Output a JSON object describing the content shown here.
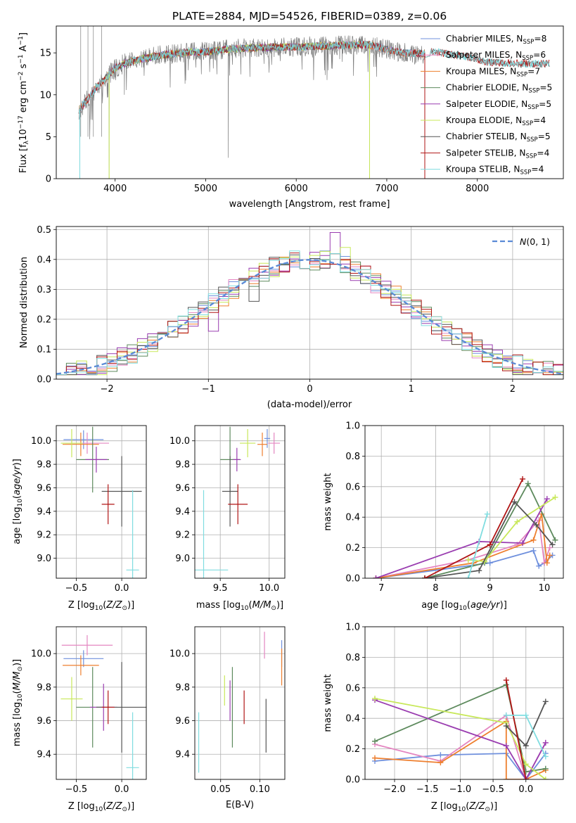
{
  "figure_title": "PLATE=2884, MJD=54526, FIBERID=0389, z=0.06",
  "colors": {
    "Chabrier MILES": "#6f90dd",
    "Salpeter MILES": "#e486c1",
    "Kroupa MILES": "#ee7f2e",
    "Chabrier ELODIE": "#5d8a5d",
    "Salpeter ELODIE": "#9a3db0",
    "Kroupa ELODIE": "#c8e85a",
    "Chabrier STELIB": "#555555",
    "Salpeter STELIB": "#b01515",
    "Kroupa STELIB": "#80dde0",
    "data": "#7f7f7f",
    "normal": "#5a8ad6"
  },
  "chart_data": [
    {
      "id": "spectrum",
      "type": "line",
      "title": "PLATE=2884, MJD=54526, FIBERID=0389, z=0.06",
      "xlabel": "wavelength [Angstrom, rest frame]",
      "ylabel": "Flux [f_λ10^-17 erg cm^-2 s^-1 A^-1]",
      "xlim": [
        3350,
        8950
      ],
      "ylim": [
        0,
        18.2
      ],
      "xticks": [
        "4000",
        "5000",
        "6000",
        "7000",
        "8000"
      ],
      "yticks": [
        "0",
        "5",
        "10",
        "15"
      ],
      "grid": false,
      "legend_position": "right",
      "legend": [
        {
          "label": "Chabrier MILES",
          "nssp": "8"
        },
        {
          "label": "Salpeter MILES",
          "nssp": "6"
        },
        {
          "label": "Kroupa MILES",
          "nssp": "7"
        },
        {
          "label": "Chabrier ELODIE",
          "nssp": "5"
        },
        {
          "label": "Salpeter ELODIE",
          "nssp": "5"
        },
        {
          "label": "Kroupa ELODIE",
          "nssp": "4"
        },
        {
          "label": "Chabrier STELIB",
          "nssp": "5"
        },
        {
          "label": "Salpeter STELIB",
          "nssp": "4"
        },
        {
          "label": "Kroupa STELIB",
          "nssp": "4"
        }
      ],
      "continuum": [
        [
          3600,
          8.2
        ],
        [
          3700,
          9.5
        ],
        [
          3800,
          11.0
        ],
        [
          3900,
          12.0
        ],
        [
          4000,
          13.2
        ],
        [
          4100,
          13.7
        ],
        [
          4200,
          14.0
        ],
        [
          4300,
          14.3
        ],
        [
          4500,
          14.7
        ],
        [
          4800,
          15.1
        ],
        [
          5000,
          15.1
        ],
        [
          5200,
          15.4
        ],
        [
          5500,
          15.6
        ],
        [
          5800,
          15.7
        ],
        [
          6000,
          15.7
        ],
        [
          6500,
          15.9
        ],
        [
          6800,
          16.0
        ],
        [
          7000,
          15.4
        ],
        [
          7200,
          15.0
        ],
        [
          7400,
          14.9
        ],
        [
          7500,
          15.2
        ],
        [
          7700,
          14.8
        ],
        [
          7900,
          14.5
        ],
        [
          8100,
          13.9
        ],
        [
          8300,
          13.8
        ],
        [
          8500,
          13.7
        ],
        [
          8800,
          13.7
        ]
      ],
      "spikes": [
        [
          3610,
          0
        ],
        [
          3750,
          7.0
        ],
        [
          3934,
          0
        ],
        [
          4102,
          10.0
        ],
        [
          5250,
          2.5
        ],
        [
          6810,
          0
        ],
        [
          7420,
          0
        ]
      ],
      "model_ranges": [
        {
          "series": "Chabrier MILES",
          "x": [
            3600,
            7420
          ]
        },
        {
          "series": "Salpeter MILES",
          "x": [
            3600,
            7420
          ]
        },
        {
          "series": "Kroupa MILES",
          "x": [
            3600,
            7420
          ]
        },
        {
          "series": "Chabrier ELODIE",
          "x": [
            3900,
            6800
          ]
        },
        {
          "series": "Salpeter ELODIE",
          "x": [
            3900,
            6800
          ]
        },
        {
          "series": "Kroupa ELODIE",
          "x": [
            3900,
            6800
          ]
        },
        {
          "series": "Chabrier STELIB",
          "x": [
            3600,
            8800
          ]
        },
        {
          "series": "Salpeter STELIB",
          "x": [
            3600,
            8800
          ]
        },
        {
          "series": "Kroupa STELIB",
          "x": [
            3600,
            8800
          ]
        }
      ]
    },
    {
      "id": "residuals",
      "type": "line",
      "xlabel": "(data-model)/error",
      "ylabel": "Normed distribution",
      "xlim": [
        -2.5,
        2.5
      ],
      "ylim": [
        0,
        0.51
      ],
      "xticks": [
        "−2",
        "−1",
        "0",
        "1",
        "2"
      ],
      "yticks": [
        "0.0",
        "0.1",
        "0.2",
        "0.3",
        "0.4",
        "0.5"
      ],
      "grid": true,
      "legend_position": "top-right",
      "legend": "N(0,1)",
      "normal": {
        "mean": 0,
        "sigma": 1
      },
      "histogram_bin_width": 0.1,
      "histogram_range": [
        -2.5,
        2.5
      ],
      "highlights": [
        {
          "series": "Salpeter ELODIE",
          "x": 0.25,
          "y": 0.49
        },
        {
          "series": "Kroupa ELODIE",
          "x": 0.35,
          "y": 0.44
        },
        {
          "series": "Chabrier STELIB",
          "x": -0.55,
          "y": 0.26
        },
        {
          "series": "Salpeter ELODIE",
          "x": -0.95,
          "y": 0.16
        }
      ]
    },
    {
      "id": "age_vs_Z",
      "type": "scatter",
      "xlabel": "Z [log10(Z/Z⊙)]",
      "ylabel": "age [log10(age/yr)]",
      "xlim": [
        -0.72,
        0.27
      ],
      "ylim": [
        8.83,
        10.13
      ],
      "xticks": [
        "−0.5",
        "0.0"
      ],
      "yticks": [
        "9.0",
        "9.2",
        "9.4",
        "9.6",
        "9.8",
        "10.0"
      ],
      "grid": true,
      "points": [
        {
          "series": "Chabrier MILES",
          "x": -0.42,
          "xerr": 0.22,
          "y": 10.01,
          "yerr": 0.08
        },
        {
          "series": "Salpeter MILES",
          "x": -0.38,
          "xerr": 0.24,
          "y": 9.98,
          "yerr": 0.09
        },
        {
          "series": "Kroupa MILES",
          "x": -0.45,
          "xerr": 0.2,
          "y": 9.97,
          "yerr": 0.1
        },
        {
          "series": "Chabrier ELODIE",
          "x": -0.32,
          "xerr": 0.18,
          "y": 9.84,
          "yerr": 0.28
        },
        {
          "series": "Salpeter ELODIE",
          "x": -0.28,
          "xerr": 0.12,
          "y": 9.84,
          "yerr": 0.11
        },
        {
          "series": "Kroupa ELODIE",
          "x": -0.55,
          "xerr": 0.12,
          "y": 9.98,
          "yerr": 0.12
        },
        {
          "series": "Chabrier STELIB",
          "x": 0.0,
          "xerr": 0.22,
          "y": 9.57,
          "yerr": 0.3
        },
        {
          "series": "Salpeter STELIB",
          "x": -0.15,
          "xerr": 0.07,
          "y": 9.46,
          "yerr": 0.17
        },
        {
          "series": "Kroupa STELIB",
          "x": 0.12,
          "xerr": 0.07,
          "y": 8.9,
          "yerr": 0.68
        }
      ]
    },
    {
      "id": "age_vs_mass",
      "type": "scatter",
      "xlabel": "mass [log10(M/M⊙)]",
      "ylabel": "",
      "xlim": [
        9.24,
        10.16
      ],
      "ylim": [
        8.83,
        10.13
      ],
      "xticks": [
        "9.5",
        "10.0"
      ],
      "yticks": [
        "9.0",
        "9.2",
        "9.4",
        "9.6",
        "9.8",
        "10.0"
      ],
      "grid": true,
      "points": [
        {
          "series": "Chabrier MILES",
          "x": 9.98,
          "xerr": 0.03,
          "y": 10.02,
          "yerr": 0.08
        },
        {
          "series": "Salpeter MILES",
          "x": 10.05,
          "xerr": 0.06,
          "y": 9.98,
          "yerr": 0.09
        },
        {
          "series": "Kroupa MILES",
          "x": 9.93,
          "xerr": 0.05,
          "y": 9.97,
          "yerr": 0.1
        },
        {
          "series": "Chabrier ELODIE",
          "x": 9.6,
          "xerr": 0.1,
          "y": 9.84,
          "yerr": 0.28
        },
        {
          "series": "Salpeter ELODIE",
          "x": 9.67,
          "xerr": 0.04,
          "y": 9.84,
          "yerr": 0.1
        },
        {
          "series": "Kroupa ELODIE",
          "x": 9.78,
          "xerr": 0.08,
          "y": 9.98,
          "yerr": 0.12
        },
        {
          "series": "Chabrier STELIB",
          "x": 9.6,
          "xerr": 0.08,
          "y": 9.57,
          "yerr": 0.3
        },
        {
          "series": "Salpeter STELIB",
          "x": 9.68,
          "xerr": 0.1,
          "y": 9.46,
          "yerr": 0.17
        },
        {
          "series": "Kroupa STELIB",
          "x": 9.33,
          "xerr": 0.25,
          "y": 8.9,
          "yerr": 0.68
        }
      ]
    },
    {
      "id": "weight_vs_age",
      "type": "line",
      "xlabel": "age [log10(age/yr)]",
      "ylabel": "mass weight",
      "xlim": [
        6.7,
        10.35
      ],
      "ylim": [
        0,
        1.0
      ],
      "xticks": [
        "7",
        "8",
        "9",
        "10"
      ],
      "yticks": [
        "0.0",
        "0.2",
        "0.4",
        "0.6",
        "0.8",
        "1.0"
      ],
      "grid": true,
      "series": [
        {
          "name": "Chabrier MILES",
          "x": [
            6.9,
            9.0,
            9.8,
            9.9,
            10.0,
            10.15
          ],
          "y": [
            0.0,
            0.1,
            0.18,
            0.08,
            0.1,
            0.15
          ]
        },
        {
          "name": "Salpeter MILES",
          "x": [
            6.9,
            8.6,
            9.5,
            9.9,
            10.0,
            10.1
          ],
          "y": [
            0.0,
            0.12,
            0.22,
            0.38,
            0.1,
            0.2
          ]
        },
        {
          "name": "Kroupa MILES",
          "x": [
            6.9,
            8.7,
            9.8,
            9.95,
            10.05,
            10.1
          ],
          "y": [
            0.0,
            0.1,
            0.25,
            0.42,
            0.1,
            0.15
          ]
        },
        {
          "name": "Chabrier ELODIE",
          "x": [
            7.8,
            8.9,
            9.7,
            10.2
          ],
          "y": [
            0.0,
            0.1,
            0.62,
            0.25
          ]
        },
        {
          "name": "Salpeter ELODIE",
          "x": [
            6.9,
            8.8,
            9.6,
            10.05
          ],
          "y": [
            0.0,
            0.24,
            0.23,
            0.52
          ]
        },
        {
          "name": "Kroupa ELODIE",
          "x": [
            8.6,
            8.9,
            9.5,
            10.2
          ],
          "y": [
            0.12,
            0.11,
            0.37,
            0.53
          ]
        },
        {
          "name": "Chabrier STELIB",
          "x": [
            7.8,
            8.8,
            9.45,
            9.85,
            10.15
          ],
          "y": [
            0.0,
            0.05,
            0.5,
            0.35,
            0.22
          ]
        },
        {
          "name": "Salpeter STELIB",
          "x": [
            7.8,
            9.0,
            9.6
          ],
          "y": [
            0.0,
            0.22,
            0.65
          ]
        },
        {
          "name": "Kroupa STELIB",
          "x": [
            8.6,
            8.7,
            8.95
          ],
          "y": [
            0.0,
            0.12,
            0.42
          ]
        }
      ]
    },
    {
      "id": "mass_vs_Z",
      "type": "scatter",
      "xlabel": "Z [log10(Z/Z⊙)]",
      "ylabel": "mass [log10(M/M⊙)]",
      "xlim": [
        -0.72,
        0.27
      ],
      "ylim": [
        9.25,
        10.16
      ],
      "xticks": [
        "−0.5",
        "0.0"
      ],
      "yticks": [
        "9.4",
        "9.6",
        "9.8",
        "10.0"
      ],
      "grid": true,
      "points": [
        {
          "series": "Chabrier MILES",
          "x": -0.42,
          "xerr": 0.22,
          "y": 9.97,
          "yerr": 0.05
        },
        {
          "series": "Salpeter MILES",
          "x": -0.38,
          "xerr": 0.28,
          "y": 10.05,
          "yerr": 0.06
        },
        {
          "series": "Kroupa MILES",
          "x": -0.45,
          "xerr": 0.2,
          "y": 9.93,
          "yerr": 0.06
        },
        {
          "series": "Chabrier ELODIE",
          "x": -0.32,
          "xerr": 0.18,
          "y": 9.68,
          "yerr": 0.24
        },
        {
          "series": "Salpeter ELODIE",
          "x": -0.2,
          "xerr": 0.15,
          "y": 9.68,
          "yerr": 0.14
        },
        {
          "series": "Kroupa ELODIE",
          "x": -0.55,
          "xerr": 0.12,
          "y": 9.73,
          "yerr": 0.13
        },
        {
          "series": "Chabrier STELIB",
          "x": 0.0,
          "xerr": 0.28,
          "y": 9.68,
          "yerr": 0.27
        },
        {
          "series": "Salpeter STELIB",
          "x": -0.15,
          "xerr": 0.07,
          "y": 9.68,
          "yerr": 0.1
        },
        {
          "series": "Kroupa STELIB",
          "x": 0.12,
          "xerr": 0.07,
          "y": 9.32,
          "yerr": 0.33
        }
      ]
    },
    {
      "id": "mass_vs_ebv",
      "type": "scatter",
      "xlabel": "E(B-V)",
      "ylabel": "",
      "xlim": [
        0.017,
        0.132
      ],
      "ylim": [
        9.25,
        10.16
      ],
      "xticks": [
        "0.05",
        "0.10"
      ],
      "yticks": [
        "9.4",
        "9.6",
        "9.8",
        "10.0"
      ],
      "grid": true,
      "points": [
        {
          "series": "Chabrier MILES",
          "x": 0.128,
          "y": 10.0,
          "yerr": 0.08
        },
        {
          "series": "Salpeter MILES",
          "x": 0.106,
          "y": 10.05,
          "yerr": 0.08
        },
        {
          "series": "Kroupa MILES",
          "x": 0.128,
          "y": 9.92,
          "yerr": 0.11
        },
        {
          "series": "Chabrier ELODIE",
          "x": 0.065,
          "y": 9.68,
          "yerr": 0.24
        },
        {
          "series": "Salpeter ELODIE",
          "x": 0.062,
          "y": 9.72,
          "yerr": 0.12
        },
        {
          "series": "Kroupa ELODIE",
          "x": 0.055,
          "y": 9.78,
          "yerr": 0.09
        },
        {
          "series": "Chabrier STELIB",
          "x": 0.108,
          "y": 9.57,
          "yerr": 0.16
        },
        {
          "series": "Salpeter STELIB",
          "x": 0.08,
          "y": 9.68,
          "yerr": 0.1
        },
        {
          "series": "Kroupa STELIB",
          "x": 0.022,
          "y": 9.47,
          "yerr": 0.18
        }
      ]
    },
    {
      "id": "weight_vs_Z",
      "type": "line",
      "xlabel": "Z [log10(Z/Z⊙)]",
      "ylabel": "mass weight",
      "xlim": [
        -2.45,
        0.57
      ],
      "ylim": [
        0,
        1.0
      ],
      "xticks": [
        "−2.0",
        "−1.5",
        "−1.0",
        "−0.5",
        "0.0"
      ],
      "yticks": [
        "0.0",
        "0.2",
        "0.4",
        "0.6",
        "0.8",
        "1.0"
      ],
      "grid": true,
      "series": [
        {
          "name": "Chabrier MILES",
          "x": [
            -2.3,
            -1.3,
            -0.3,
            0.0,
            0.3
          ],
          "y": [
            0.12,
            0.16,
            0.17,
            0.0,
            0.17
          ]
        },
        {
          "name": "Salpeter MILES",
          "x": [
            -2.3,
            -1.3,
            -0.3,
            0.0,
            0.3
          ],
          "y": [
            0.23,
            0.12,
            0.42,
            0.0,
            0.24
          ]
        },
        {
          "name": "Kroupa MILES",
          "x": [
            -2.3,
            -1.3,
            -0.3,
            -0.3,
            0.0,
            0.3
          ],
          "y": [
            0.14,
            0.11,
            0.38,
            0.0,
            0.0,
            0.06
          ]
        },
        {
          "name": "Chabrier ELODIE",
          "x": [
            -2.3,
            -0.3,
            0.0,
            0.3
          ],
          "y": [
            0.25,
            0.62,
            0.05,
            0.07
          ]
        },
        {
          "name": "Salpeter ELODIE",
          "x": [
            -2.3,
            -0.3,
            0.0,
            0.3
          ],
          "y": [
            0.52,
            0.22,
            0.0,
            0.24
          ]
        },
        {
          "name": "Kroupa ELODIE",
          "x": [
            -2.3,
            -0.3,
            0.0,
            0.3
          ],
          "y": [
            0.53,
            0.37,
            0.1,
            0.0
          ]
        },
        {
          "name": "Chabrier STELIB",
          "x": [
            -0.3,
            0.0,
            0.3
          ],
          "y": [
            0.35,
            0.22,
            0.51
          ]
        },
        {
          "name": "Salpeter STELIB",
          "x": [
            -0.3,
            0.0
          ],
          "y": [
            0.65,
            0.0
          ]
        },
        {
          "name": "Kroupa STELIB",
          "x": [
            -0.3,
            0.0,
            0.3
          ],
          "y": [
            0.42,
            0.42,
            0.15
          ]
        }
      ]
    }
  ]
}
